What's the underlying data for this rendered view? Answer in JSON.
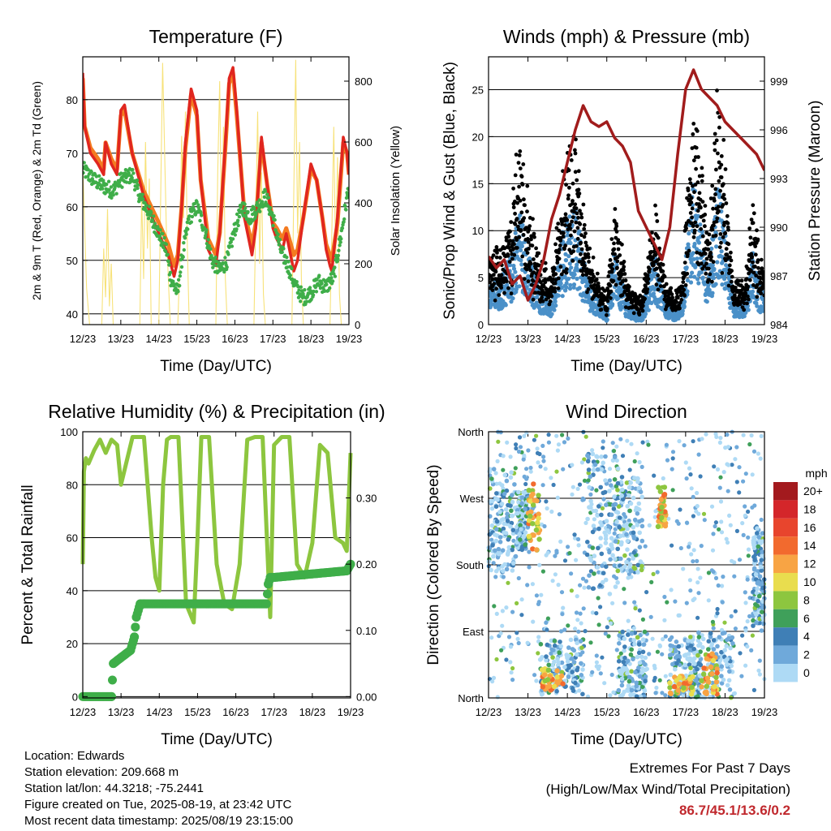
{
  "colors": {
    "temp2m": "#e0261f",
    "temp9m": "#f47b20",
    "dewpoint": "#3fae49",
    "solar": "#f7e27a",
    "wind": "#4a90c8",
    "gust": "#000000",
    "pressure": "#a11c1c",
    "rh": "#8dc63f",
    "precip": "#3fae49",
    "extremes": "#c0282d"
  },
  "chart_data": [
    {
      "id": "temperature",
      "type": "line",
      "title": "Temperature (F)",
      "xlabel": "Time (Day/UTC)",
      "ylabel": "2m & 9m T (Red, Orange) & 2m Td (Green)",
      "y2label": "Solar Insolation (Yellow)",
      "x_ticks": [
        "12/23",
        "13/23",
        "14/23",
        "15/23",
        "16/23",
        "17/23",
        "18/23",
        "19/23"
      ],
      "xlim": [
        0,
        7
      ],
      "ylim": [
        38,
        88
      ],
      "yticks": [
        40,
        50,
        60,
        70,
        80
      ],
      "y2lim": [
        0,
        880
      ],
      "y2ticks": [
        0,
        200,
        400,
        600,
        800
      ],
      "series": [
        {
          "key": "t2m",
          "x": [
            0,
            0.05,
            0.2,
            0.4,
            0.55,
            0.6,
            0.75,
            0.9,
            1.0,
            1.1,
            1.3,
            1.6,
            2.0,
            2.25,
            2.4,
            2.5,
            2.6,
            2.7,
            2.85,
            3.0,
            3.1,
            3.3,
            3.5,
            3.6,
            3.75,
            3.85,
            3.95,
            4.05,
            4.25,
            4.45,
            4.55,
            4.7,
            4.85,
            5.0,
            5.1,
            5.25,
            5.35,
            5.55,
            5.65,
            5.8,
            6.0,
            6.15,
            6.3,
            6.4,
            6.5,
            6.55,
            6.7,
            6.85,
            6.95,
            7.0
          ],
          "y": [
            85,
            75,
            70,
            68,
            66,
            72,
            68,
            66,
            78,
            79,
            70,
            62,
            55,
            51,
            47,
            50,
            60,
            72,
            82,
            78,
            65,
            52,
            49,
            55,
            72,
            84,
            86,
            78,
            58,
            51,
            56,
            73,
            64,
            56,
            54,
            52,
            55,
            48,
            50,
            58,
            68,
            65,
            58,
            52,
            49,
            48,
            58,
            73,
            70,
            66
          ]
        },
        {
          "key": "t9m",
          "x": [
            0,
            0.05,
            0.2,
            0.4,
            0.55,
            0.6,
            0.75,
            0.9,
            1.0,
            1.1,
            1.3,
            1.6,
            2.0,
            2.25,
            2.4,
            2.5,
            2.6,
            2.7,
            2.85,
            3.0,
            3.1,
            3.3,
            3.5,
            3.6,
            3.75,
            3.85,
            3.95,
            4.05,
            4.25,
            4.45,
            4.55,
            4.7,
            4.85,
            5.0,
            5.1,
            5.25,
            5.35,
            5.55,
            5.65,
            5.8,
            6.0,
            6.15,
            6.3,
            6.4,
            6.5,
            6.55,
            6.7,
            6.85,
            6.95,
            7.0
          ],
          "y": [
            84,
            75,
            71,
            69,
            67,
            72,
            69,
            67,
            77,
            78,
            70,
            63,
            57,
            53,
            49,
            51,
            60,
            71,
            81,
            77,
            65,
            54,
            51,
            55,
            71,
            83,
            85,
            77,
            59,
            53,
            57,
            72,
            64,
            57,
            56,
            54,
            56,
            51,
            52,
            58,
            67,
            65,
            58,
            53,
            51,
            50,
            57,
            72,
            70,
            66
          ]
        },
        {
          "key": "td2m",
          "x": [
            0,
            0.3,
            0.5,
            0.8,
            1.0,
            1.3,
            1.5,
            1.8,
            2.0,
            2.2,
            2.3,
            2.4,
            2.5,
            2.6,
            2.8,
            3.0,
            3.2,
            3.4,
            3.6,
            3.8,
            4.0,
            4.2,
            4.4,
            4.6,
            4.8,
            5.0,
            5.2,
            5.4,
            5.6,
            5.8,
            6.0,
            6.2,
            6.4,
            6.6,
            6.8,
            7.0
          ],
          "y": [
            67,
            65,
            64,
            63,
            65,
            66,
            62,
            58,
            55,
            52,
            47,
            45,
            44,
            50,
            58,
            60,
            56,
            50,
            48,
            50,
            56,
            60,
            58,
            60,
            62,
            58,
            52,
            49,
            45,
            43,
            44,
            46,
            45,
            47,
            55,
            64
          ]
        },
        {
          "key": "solar",
          "axis": "y2",
          "x": [
            0,
            0.1,
            0.18,
            0.25,
            0.3,
            0.5,
            0.55,
            0.6,
            0.65,
            0.7,
            0.75,
            0.8,
            1.0,
            1.1,
            1.2,
            1.3,
            1.5,
            1.55,
            1.6,
            1.65,
            1.7,
            1.75,
            1.8,
            2.0,
            2.1,
            2.2,
            2.3,
            2.5,
            2.55,
            2.6,
            2.65,
            2.7,
            2.75,
            2.8,
            3.0,
            3.1,
            3.2,
            3.3,
            3.5,
            3.55,
            3.6,
            3.65,
            3.7,
            3.75,
            3.8,
            4.0,
            4.1,
            4.2,
            4.3,
            4.5,
            4.55,
            4.6,
            4.65,
            4.7,
            4.75,
            4.8,
            5.0,
            5.1,
            5.2,
            5.3,
            5.5,
            5.55,
            5.6,
            5.65,
            5.7,
            5.75,
            5.8,
            6.0,
            6.1,
            6.2,
            6.3,
            6.5,
            6.55,
            6.6,
            6.65,
            6.7,
            6.75,
            6.8,
            7.0
          ],
          "y": [
            520,
            120,
            0,
            0,
            0,
            0,
            250,
            90,
            380,
            60,
            200,
            0,
            0,
            0,
            0,
            0,
            0,
            420,
            150,
            600,
            250,
            480,
            0,
            0,
            860,
            300,
            0,
            0,
            200,
            620,
            350,
            700,
            250,
            0,
            0,
            0,
            0,
            0,
            0,
            500,
            800,
            300,
            650,
            150,
            0,
            0,
            0,
            0,
            0,
            0,
            350,
            700,
            200,
            500,
            100,
            0,
            0,
            0,
            0,
            0,
            0,
            450,
            870,
            300,
            600,
            150,
            0,
            0,
            0,
            0,
            0,
            0,
            300,
            650,
            200,
            550,
            100,
            0,
            0
          ]
        }
      ]
    },
    {
      "id": "winds",
      "type": "scatter",
      "title": "Winds (mph) & Pressure (mb)",
      "xlabel": "Time (Day/UTC)",
      "ylabel": "Sonic/Prop Wind & Gust (Blue, Black)",
      "y2label": "Station Pressure (Maroon)",
      "x_ticks": [
        "12/23",
        "13/23",
        "14/23",
        "15/23",
        "16/23",
        "17/23",
        "18/23",
        "19/23"
      ],
      "xlim": [
        0,
        7
      ],
      "ylim": [
        0,
        28.5
      ],
      "yticks": [
        0,
        5,
        10,
        15,
        20,
        25
      ],
      "y2lim": [
        984,
        1000.5
      ],
      "y2ticks": [
        984,
        987,
        990,
        993,
        996,
        999
      ],
      "wind_activity": {
        "x": [
          0,
          0.3,
          0.6,
          0.8,
          1.0,
          1.3,
          1.6,
          1.9,
          2.2,
          2.5,
          2.8,
          3.0,
          3.2,
          3.5,
          3.7,
          3.9,
          4.2,
          4.5,
          4.7,
          4.9,
          5.2,
          5.4,
          5.6,
          5.8,
          6.0,
          6.2,
          6.5,
          6.7,
          6.9,
          7.0
        ],
        "y": [
          3,
          4,
          6,
          10,
          6,
          3,
          2,
          8,
          10,
          4,
          2,
          1,
          6,
          2,
          1,
          1,
          6,
          2,
          1,
          2,
          12,
          8,
          4,
          12,
          8,
          2,
          2,
          6,
          3,
          3
        ]
      },
      "pressure": {
        "x": [
          0,
          0.2,
          0.4,
          0.6,
          0.8,
          1.0,
          1.2,
          1.4,
          1.6,
          1.8,
          2.0,
          2.2,
          2.4,
          2.6,
          2.8,
          3.0,
          3.2,
          3.4,
          3.6,
          3.8,
          4.0,
          4.2,
          4.4,
          4.6,
          4.8,
          5.0,
          5.2,
          5.4,
          5.6,
          5.8,
          6.0,
          6.2,
          6.4,
          6.6,
          6.8,
          7.0
        ],
        "y": [
          988.2,
          987.5,
          988,
          986.5,
          987,
          985.5,
          986.5,
          988,
          990.5,
          992,
          994,
          996,
          997.5,
          996.5,
          996.2,
          996.5,
          995.5,
          995,
          994,
          991,
          990,
          989,
          988,
          990,
          994.5,
          998.5,
          999.7,
          998.5,
          998,
          997.5,
          996.5,
          996,
          995.5,
          995,
          994.5,
          993.5
        ]
      }
    },
    {
      "id": "rh_precip",
      "type": "line",
      "title": "Relative Humidity (%) & Precipitation (in)",
      "xlabel": "Time (Day/UTC)",
      "ylabel": "Percent & Total Rainfall",
      "x_ticks": [
        "12/23",
        "13/23",
        "14/23",
        "15/23",
        "16/23",
        "17/23",
        "18/23",
        "19/23"
      ],
      "xlim": [
        0,
        7
      ],
      "ylim": [
        -0.5,
        100
      ],
      "yticks": [
        0,
        20,
        40,
        60,
        80,
        100
      ],
      "y2lim": [
        -0.002,
        0.4
      ],
      "y2ticks": [
        "0.00",
        "0.10",
        "0.20",
        "0.30"
      ],
      "series": [
        {
          "key": "rh",
          "x": [
            0,
            0.03,
            0.08,
            0.15,
            0.3,
            0.45,
            0.6,
            0.75,
            0.9,
            1.0,
            1.3,
            1.6,
            1.8,
            1.9,
            2.0,
            2.1,
            2.2,
            2.3,
            2.5,
            2.7,
            2.9,
            3.0,
            3.1,
            3.2,
            3.3,
            3.5,
            3.7,
            3.9,
            4.1,
            4.3,
            4.5,
            4.7,
            4.9,
            5.0,
            5.2,
            5.4,
            5.6,
            5.8,
            6.0,
            6.2,
            6.4,
            6.6,
            6.8,
            6.9,
            7.0
          ],
          "y": [
            50,
            85,
            90,
            88,
            93,
            97,
            92,
            97,
            95,
            80,
            98,
            98,
            60,
            45,
            40,
            80,
            97,
            98,
            98,
            35,
            28,
            60,
            98,
            98,
            98,
            50,
            35,
            33,
            50,
            97,
            98,
            98,
            30,
            95,
            98,
            98,
            50,
            45,
            58,
            95,
            92,
            60,
            58,
            55,
            92
          ]
        },
        {
          "key": "precip",
          "axis": "y2",
          "x": [
            0,
            0.75,
            0.8,
            1.25,
            1.35,
            1.4,
            1.5,
            1.6,
            4.8,
            4.85,
            4.9,
            5.0,
            6.9,
            7.0
          ],
          "y": [
            0,
            0,
            0.05,
            0.07,
            0.09,
            0.12,
            0.14,
            0.14,
            0.14,
            0.17,
            0.18,
            0.18,
            0.19,
            0.2
          ]
        }
      ]
    },
    {
      "id": "wind_direction",
      "type": "scatter",
      "title": "Wind Direction",
      "xlabel": "Time (Day/UTC)",
      "ylabel": "Direction (Colored By Speed)",
      "x_ticks": [
        "12/23",
        "13/23",
        "14/23",
        "15/23",
        "16/23",
        "17/23",
        "18/23",
        "19/23"
      ],
      "xlim": [
        0,
        7
      ],
      "ylim": [
        0,
        360
      ],
      "y_ticks": [
        "North",
        "East",
        "South",
        "West",
        "North"
      ],
      "legend": {
        "title": "mph",
        "labels": [
          "20+",
          "18",
          "16",
          "14",
          "12",
          "10",
          "8",
          "6",
          "4",
          "2",
          "0"
        ],
        "colors": [
          "#a31a1e",
          "#d4262a",
          "#e8452d",
          "#f26a2e",
          "#f8a444",
          "#e9dd4e",
          "#8dc63f",
          "#3fa05a",
          "#3f7fb6",
          "#6fa9da",
          "#aedaf5"
        ]
      },
      "dense_bands": [
        {
          "x": [
            0.0,
            0.7
          ],
          "dir": [
            170,
            310
          ]
        },
        {
          "x": [
            0.7,
            1.0
          ],
          "dir": [
            200,
            280
          ]
        },
        {
          "x": [
            1.3,
            2.4
          ],
          "dir": [
            5,
            80
          ]
        },
        {
          "x": [
            2.5,
            3.3
          ],
          "dir": [
            140,
            330
          ]
        },
        {
          "x": [
            3.2,
            3.9
          ],
          "dir": [
            170,
            300
          ]
        },
        {
          "x": [
            3.3,
            4.0
          ],
          "dir": [
            0,
            90
          ]
        },
        {
          "x": [
            4.6,
            5.4
          ],
          "dir": [
            0,
            80
          ]
        },
        {
          "x": [
            5.1,
            6.2
          ],
          "dir": [
            0,
            90
          ]
        },
        {
          "x": [
            6.7,
            7.0
          ],
          "dir": [
            90,
            230
          ]
        }
      ]
    }
  ],
  "info": {
    "location": "Location: Edwards",
    "elevation": "Station elevation: 209.668 m",
    "latlon": "Station lat/lon: 44.3218; -75.2441",
    "created": "Figure created on Tue, 2025-08-19, at 23:42 UTC",
    "latest": "Most recent data timestamp: 2025/08/19 23:15:00"
  },
  "extremes": {
    "title": "Extremes For Past 7 Days",
    "subtitle": "(High/Low/Max Wind/Total Precipitation)",
    "value": "86.7/45.1/13.6/0.2"
  }
}
